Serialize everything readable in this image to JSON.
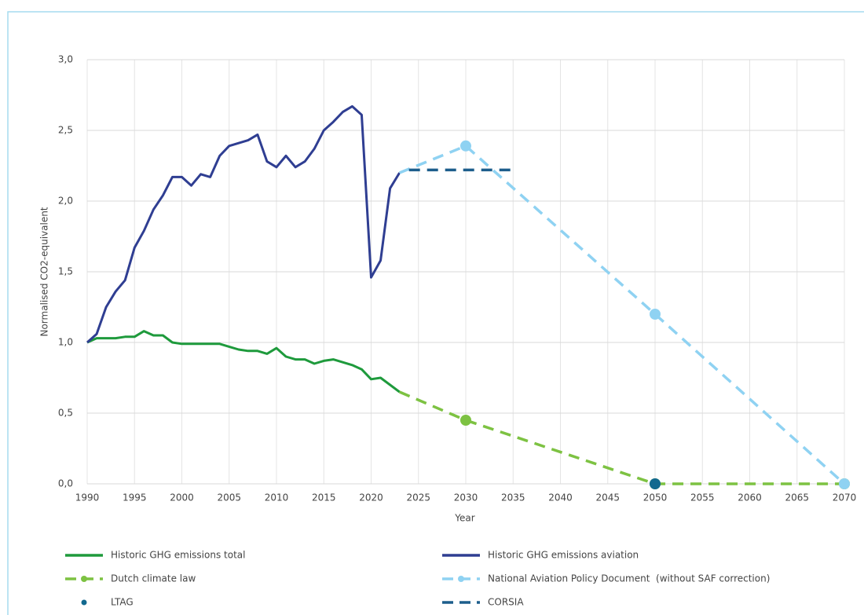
{
  "chart_data": {
    "type": "line",
    "xlabel": "Year",
    "ylabel": "Normalised CO2-equivalent",
    "xlim": [
      1990,
      2070
    ],
    "xticks": [
      1990,
      1995,
      2000,
      2005,
      2010,
      2015,
      2020,
      2025,
      2030,
      2035,
      2040,
      2045,
      2050,
      2055,
      2060,
      2065,
      2070
    ],
    "ylim": [
      0,
      3
    ],
    "yticks": [
      {
        "value": 0,
        "label": "0,0"
      },
      {
        "value": 0.5,
        "label": "0,5"
      },
      {
        "value": 1,
        "label": "1,0"
      },
      {
        "value": 1.5,
        "label": "1,5"
      },
      {
        "value": 2,
        "label": "2,0"
      },
      {
        "value": 2.5,
        "label": "2,5"
      },
      {
        "value": 3,
        "label": "3,0"
      }
    ],
    "grid": true,
    "series": [
      {
        "name": "Historic GHG emissions total",
        "color": "#1e9a3c",
        "dashed": false,
        "marker": false,
        "line": true,
        "x": [
          1990,
          1991,
          1992,
          1993,
          1994,
          1995,
          1996,
          1997,
          1998,
          1999,
          2000,
          2001,
          2002,
          2003,
          2004,
          2005,
          2006,
          2007,
          2008,
          2009,
          2010,
          2011,
          2012,
          2013,
          2014,
          2015,
          2016,
          2017,
          2018,
          2019,
          2020,
          2021,
          2022,
          2023
        ],
        "values": [
          1.0,
          1.03,
          1.03,
          1.03,
          1.04,
          1.04,
          1.08,
          1.05,
          1.05,
          1.0,
          0.99,
          0.99,
          0.99,
          0.99,
          0.99,
          0.97,
          0.95,
          0.94,
          0.94,
          0.92,
          0.96,
          0.9,
          0.88,
          0.88,
          0.85,
          0.87,
          0.88,
          0.86,
          0.84,
          0.81,
          0.74,
          0.75,
          0.7,
          0.65
        ]
      },
      {
        "name": "Historic GHG emissions aviation",
        "color": "#2f3e92",
        "dashed": false,
        "marker": false,
        "line": true,
        "x": [
          1990,
          1991,
          1992,
          1993,
          1994,
          1995,
          1996,
          1997,
          1998,
          1999,
          2000,
          2001,
          2002,
          2003,
          2004,
          2005,
          2006,
          2007,
          2008,
          2009,
          2010,
          2011,
          2012,
          2013,
          2014,
          2015,
          2016,
          2017,
          2018,
          2019,
          2020,
          2021,
          2022,
          2023
        ],
        "values": [
          1.0,
          1.06,
          1.25,
          1.36,
          1.44,
          1.67,
          1.79,
          1.94,
          2.04,
          2.17,
          2.17,
          2.11,
          2.19,
          2.17,
          2.32,
          2.39,
          2.41,
          2.43,
          2.47,
          2.28,
          2.24,
          2.32,
          2.24,
          2.28,
          2.37,
          2.5,
          2.56,
          2.63,
          2.67,
          2.61,
          1.46,
          1.58,
          2.09,
          2.2
        ]
      },
      {
        "name": "Dutch climate law",
        "color": "#7dc242",
        "dashed": true,
        "marker": true,
        "line": true,
        "x": [
          2023,
          2030,
          2050,
          2070
        ],
        "values": [
          0.65,
          0.45,
          0,
          0
        ]
      },
      {
        "name": "National Aviation Policy Document  (without SAF correction)",
        "color": "#8fd2f2",
        "dashed": true,
        "marker": true,
        "line": true,
        "x": [
          2023,
          2030,
          2050,
          2070
        ],
        "values": [
          2.2,
          2.39,
          1.2,
          0
        ]
      },
      {
        "name": "LTAG",
        "color": "#12698f",
        "dashed": false,
        "marker": true,
        "line": false,
        "x": [
          2050
        ],
        "values": [
          0
        ]
      },
      {
        "name": "CORSIA",
        "color": "#1d5e8c",
        "dashed": true,
        "marker": false,
        "line": true,
        "x": [
          2024,
          2035
        ],
        "values": [
          2.22,
          2.22
        ]
      }
    ]
  }
}
